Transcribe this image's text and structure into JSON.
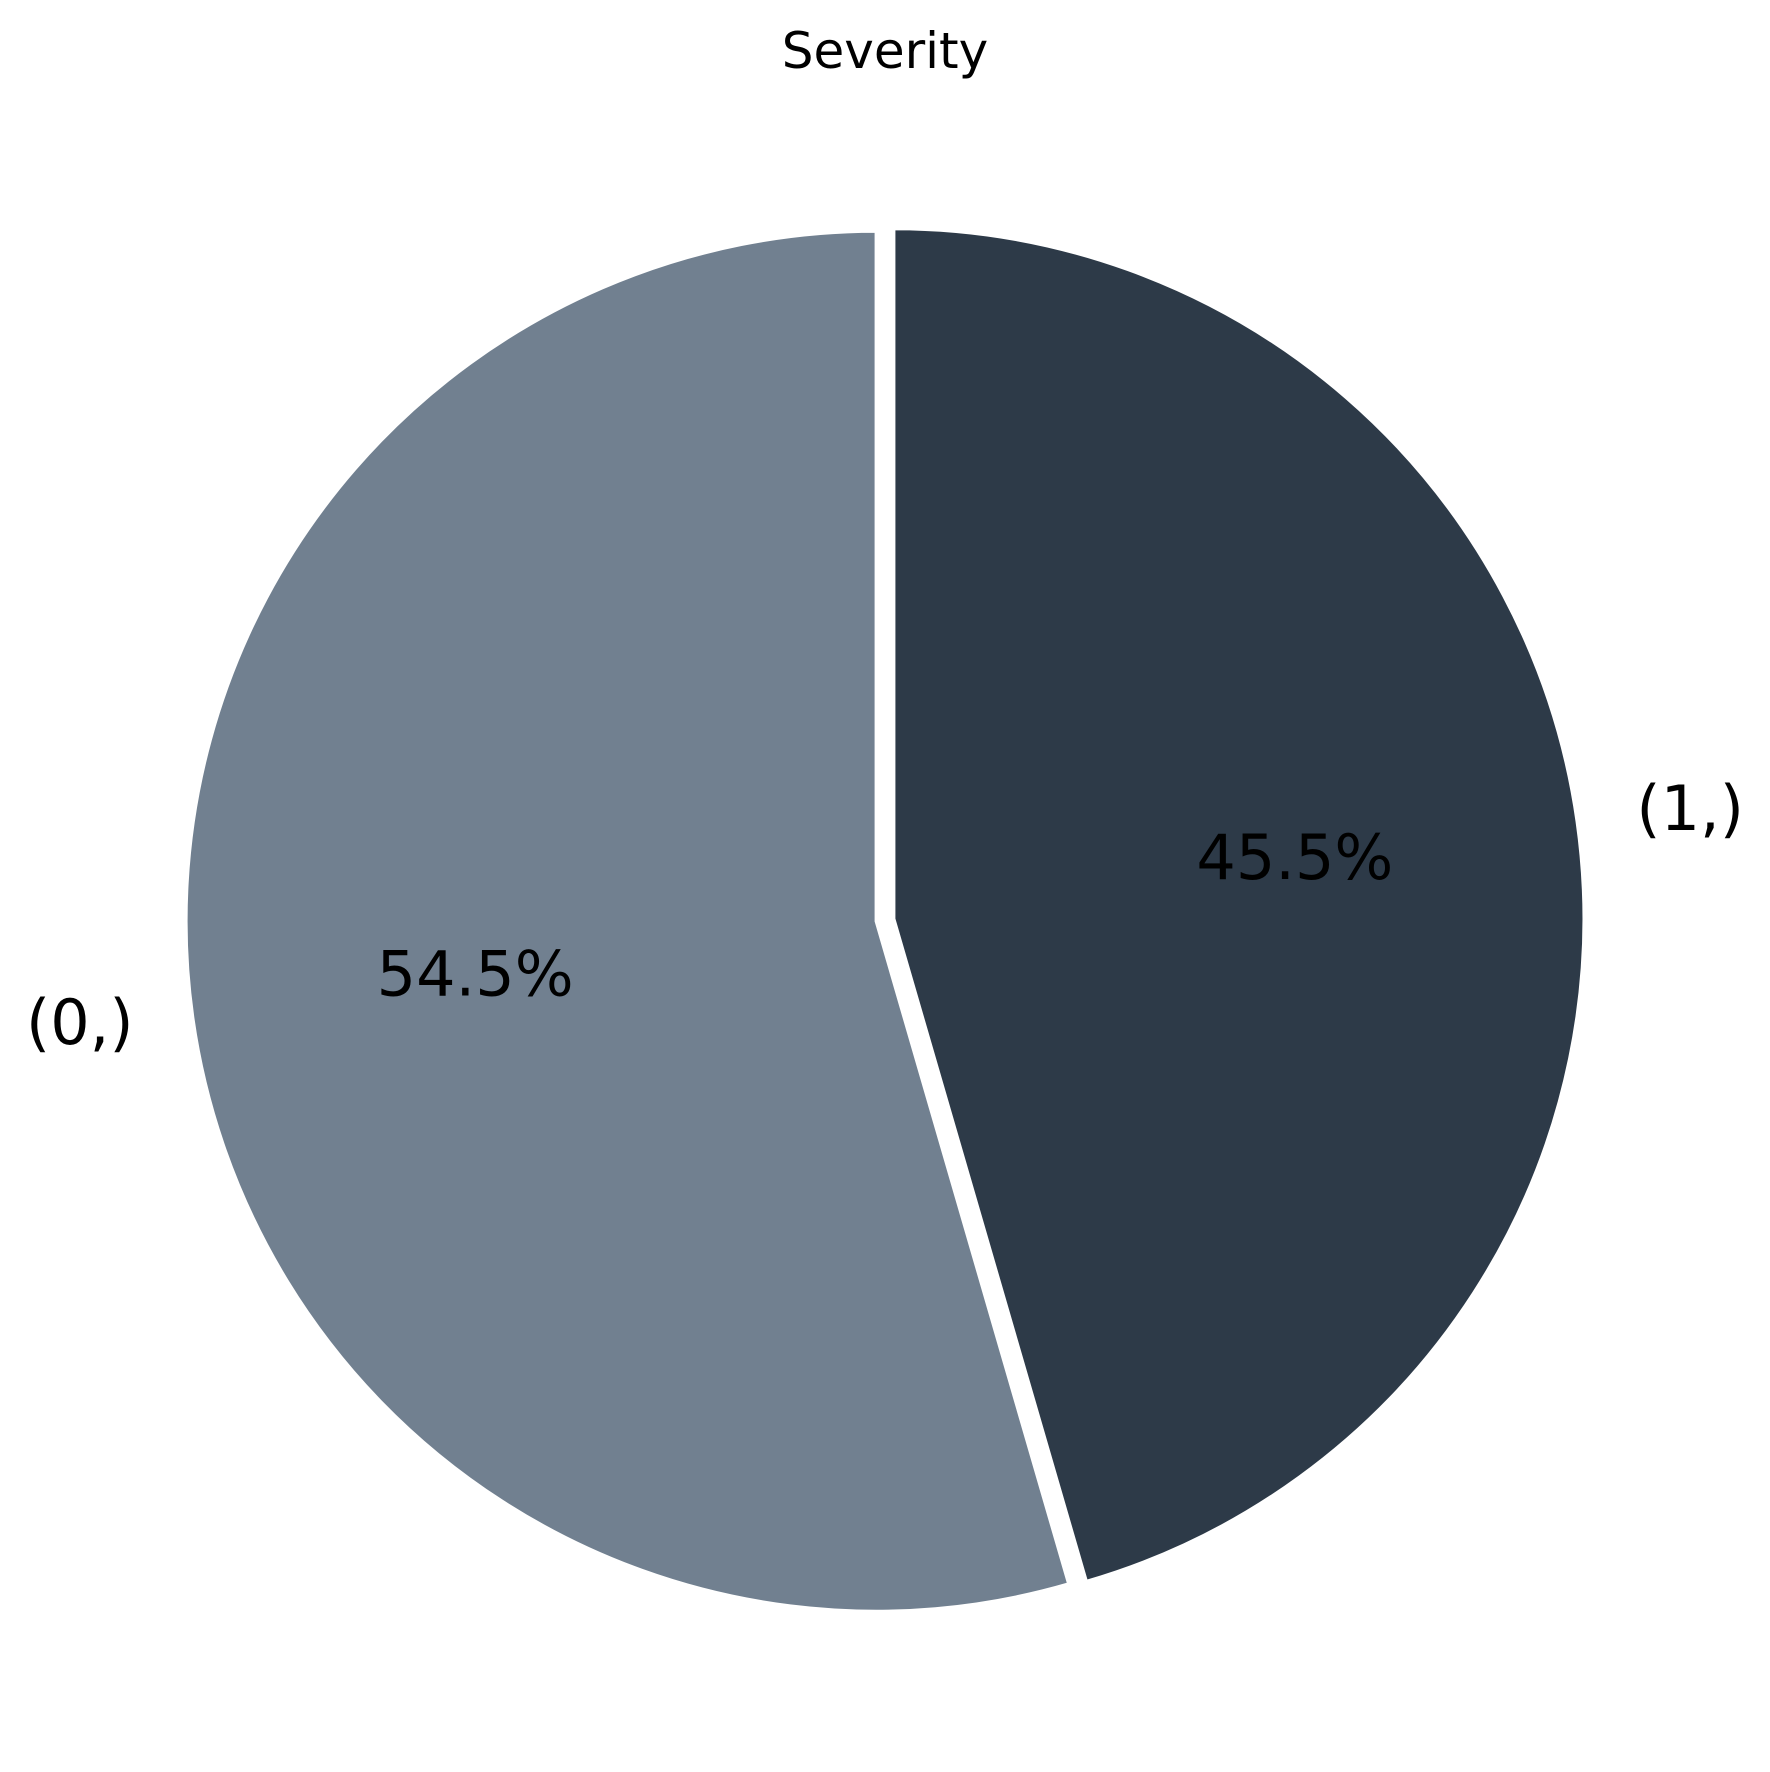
{
  "chart_data": {
    "type": "pie",
    "title": "Severity",
    "categories": [
      "(1,)",
      "(0,)"
    ],
    "values": [
      45.5,
      54.5
    ],
    "value_labels": [
      "45.5%",
      "54.5%"
    ],
    "colors": [
      "#2d3a48",
      "#718090"
    ],
    "start_angle": "top",
    "direction": "clockwise",
    "wedge_edge_color": "#ffffff",
    "legend": "none",
    "slices_exploded": true
  }
}
